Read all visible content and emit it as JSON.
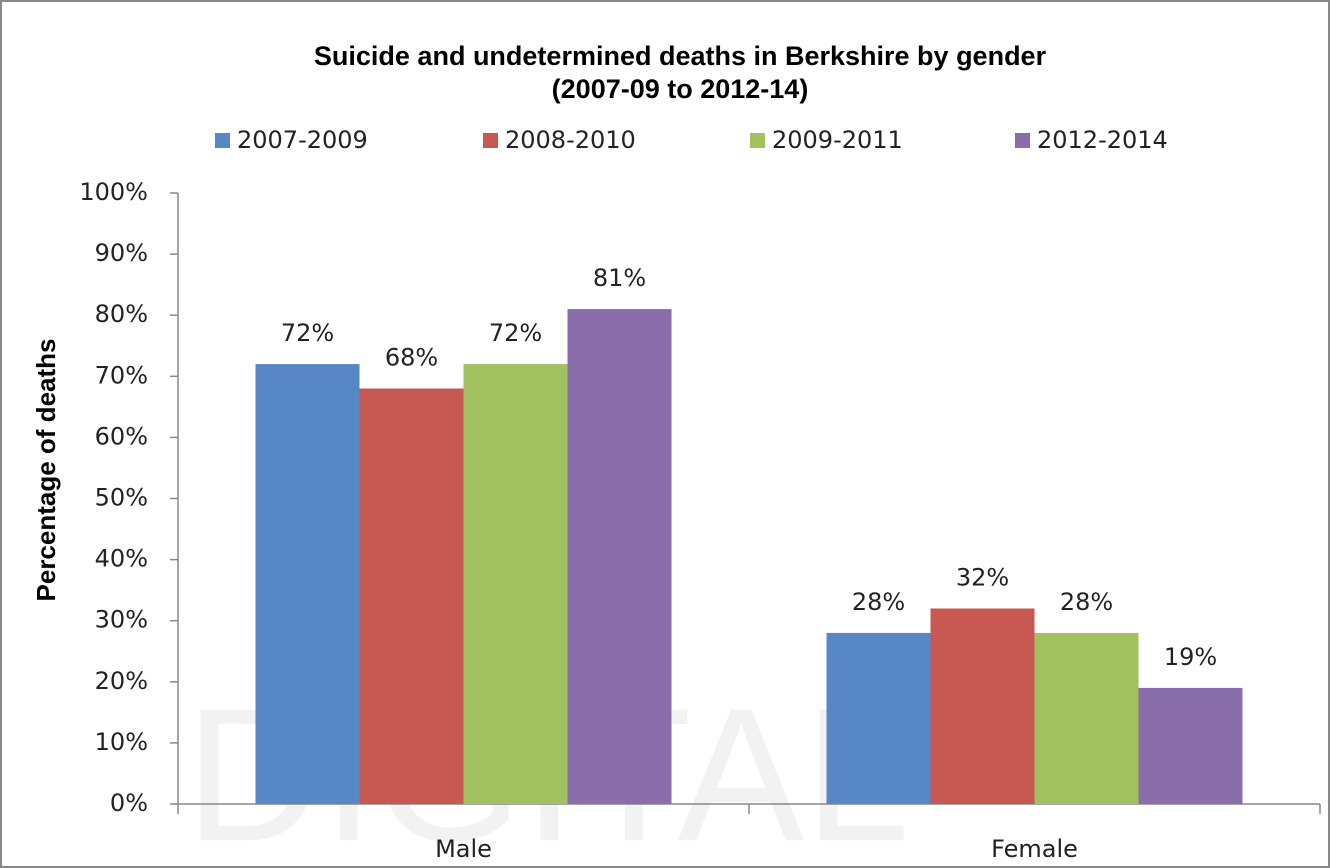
{
  "chart_data": {
    "type": "bar",
    "title": "Suicide and undetermined deaths in Berkshire by gender",
    "subtitle": "(2007-09 to 2012-14)",
    "y_label": "Percentage of deaths",
    "watermark": "DIGITAL",
    "categories": [
      "Male",
      "Female"
    ],
    "series": [
      {
        "name": "2007-2009",
        "color": "#5787c4",
        "values": [
          72,
          28
        ],
        "value_labels": [
          "72%",
          "28%"
        ]
      },
      {
        "name": "2008-2010",
        "color": "#c85852",
        "values": [
          68,
          32
        ],
        "value_labels": [
          "68%",
          "32%"
        ]
      },
      {
        "name": "2009-2011",
        "color": "#a2c160",
        "values": [
          72,
          28
        ],
        "value_labels": [
          "72%",
          "28%"
        ]
      },
      {
        "name": "2012-2014",
        "color": "#8a6dab",
        "values": [
          81,
          19
        ],
        "value_labels": [
          "81%",
          "19%"
        ]
      }
    ],
    "ylim": [
      0,
      100
    ],
    "yticks": [
      {
        "value": 0,
        "label": "0%"
      },
      {
        "value": 10,
        "label": "10%"
      },
      {
        "value": 20,
        "label": "20%"
      },
      {
        "value": 30,
        "label": "30%"
      },
      {
        "value": 40,
        "label": "40%"
      },
      {
        "value": 50,
        "label": "50%"
      },
      {
        "value": 60,
        "label": "60%"
      },
      {
        "value": 70,
        "label": "70%"
      },
      {
        "value": 80,
        "label": "80%"
      },
      {
        "value": 90,
        "label": "90%"
      },
      {
        "value": 100,
        "label": "100%"
      }
    ],
    "grid": false,
    "legend": "top"
  }
}
